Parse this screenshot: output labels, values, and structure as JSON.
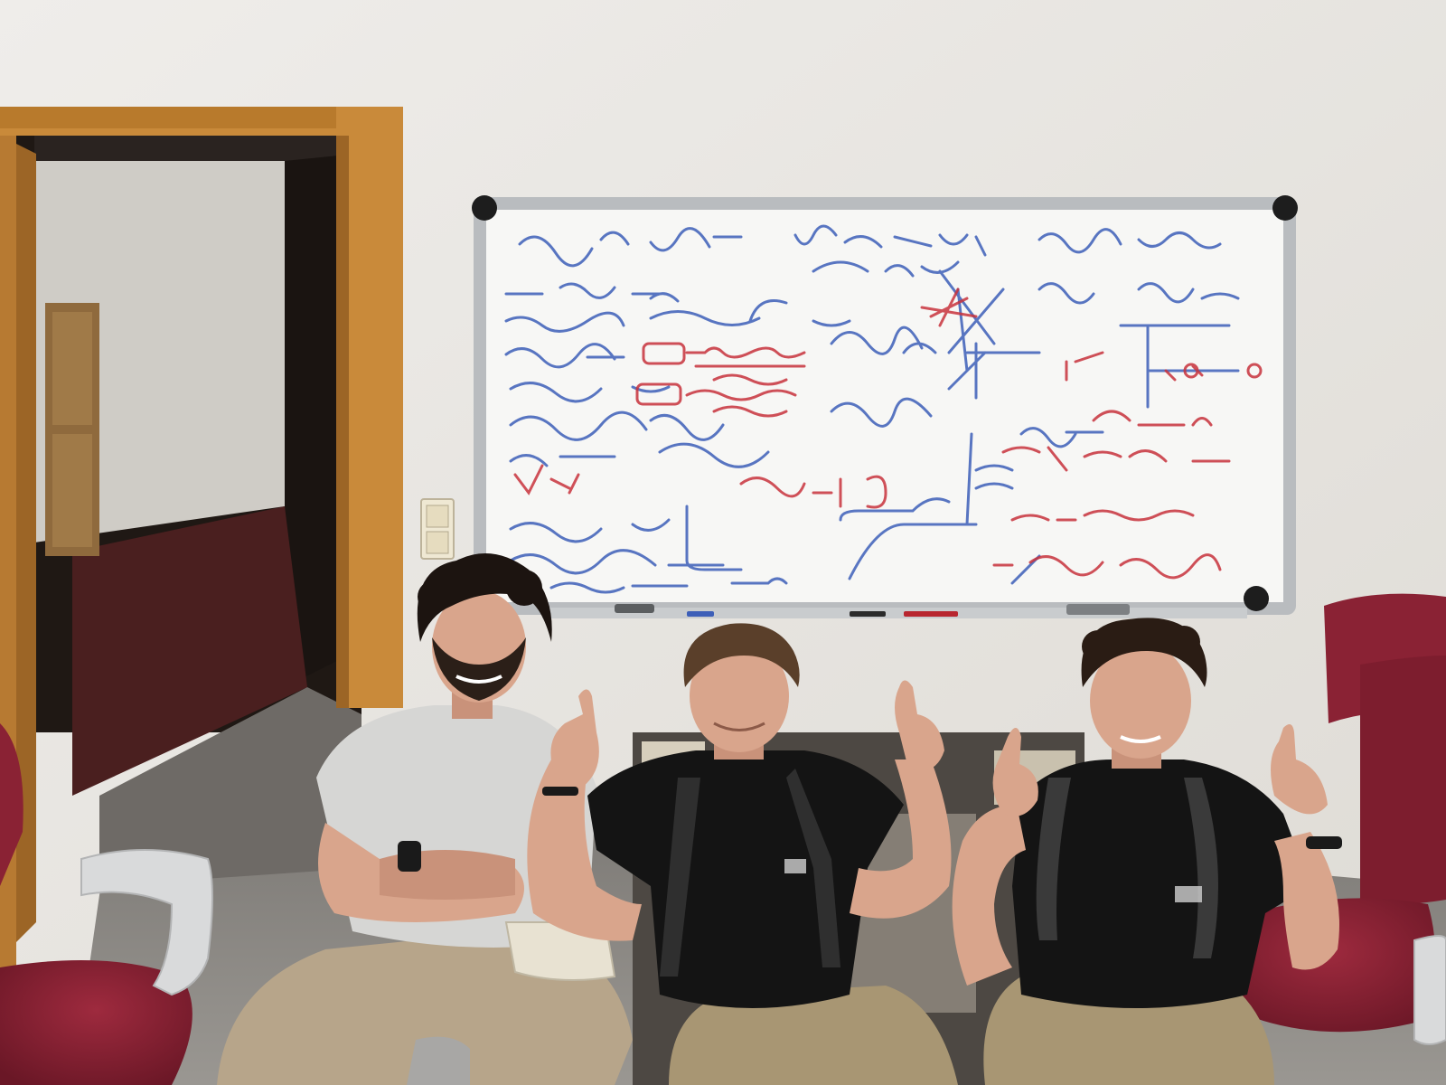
{
  "scene": {
    "description_kind": "photo",
    "colors": {
      "wall": "#ebe9e5",
      "wall_shadow": "#dcd9d3",
      "door_frame": "#c98a3a",
      "door_frame_dark": "#9c6526",
      "hall_wall": "#cfccc6",
      "hall_dark": "#2a1f1b",
      "wainscot": "#4a1f1f",
      "floor": "#8d8a86",
      "whiteboard": "#f7f7f5",
      "board_frame": "#b9bcbf",
      "board_corner": "#1d1d1d",
      "ink_blue": "#3d5fb8",
      "ink_red": "#c8323c",
      "chair_seat": "#8a2234",
      "chair_arm": "#d9dadb",
      "tshirt_grey": "#d6d6d4",
      "tshirt_black": "#141414",
      "pants_khaki": "#b7a58a",
      "shorts_khaki": "#a89673",
      "skin": "#d9a58c",
      "hair_dark": "#1c1410",
      "hair_brown": "#5a3f2a"
    },
    "icons": {
      "light_switch": "light-switch-icon"
    }
  }
}
